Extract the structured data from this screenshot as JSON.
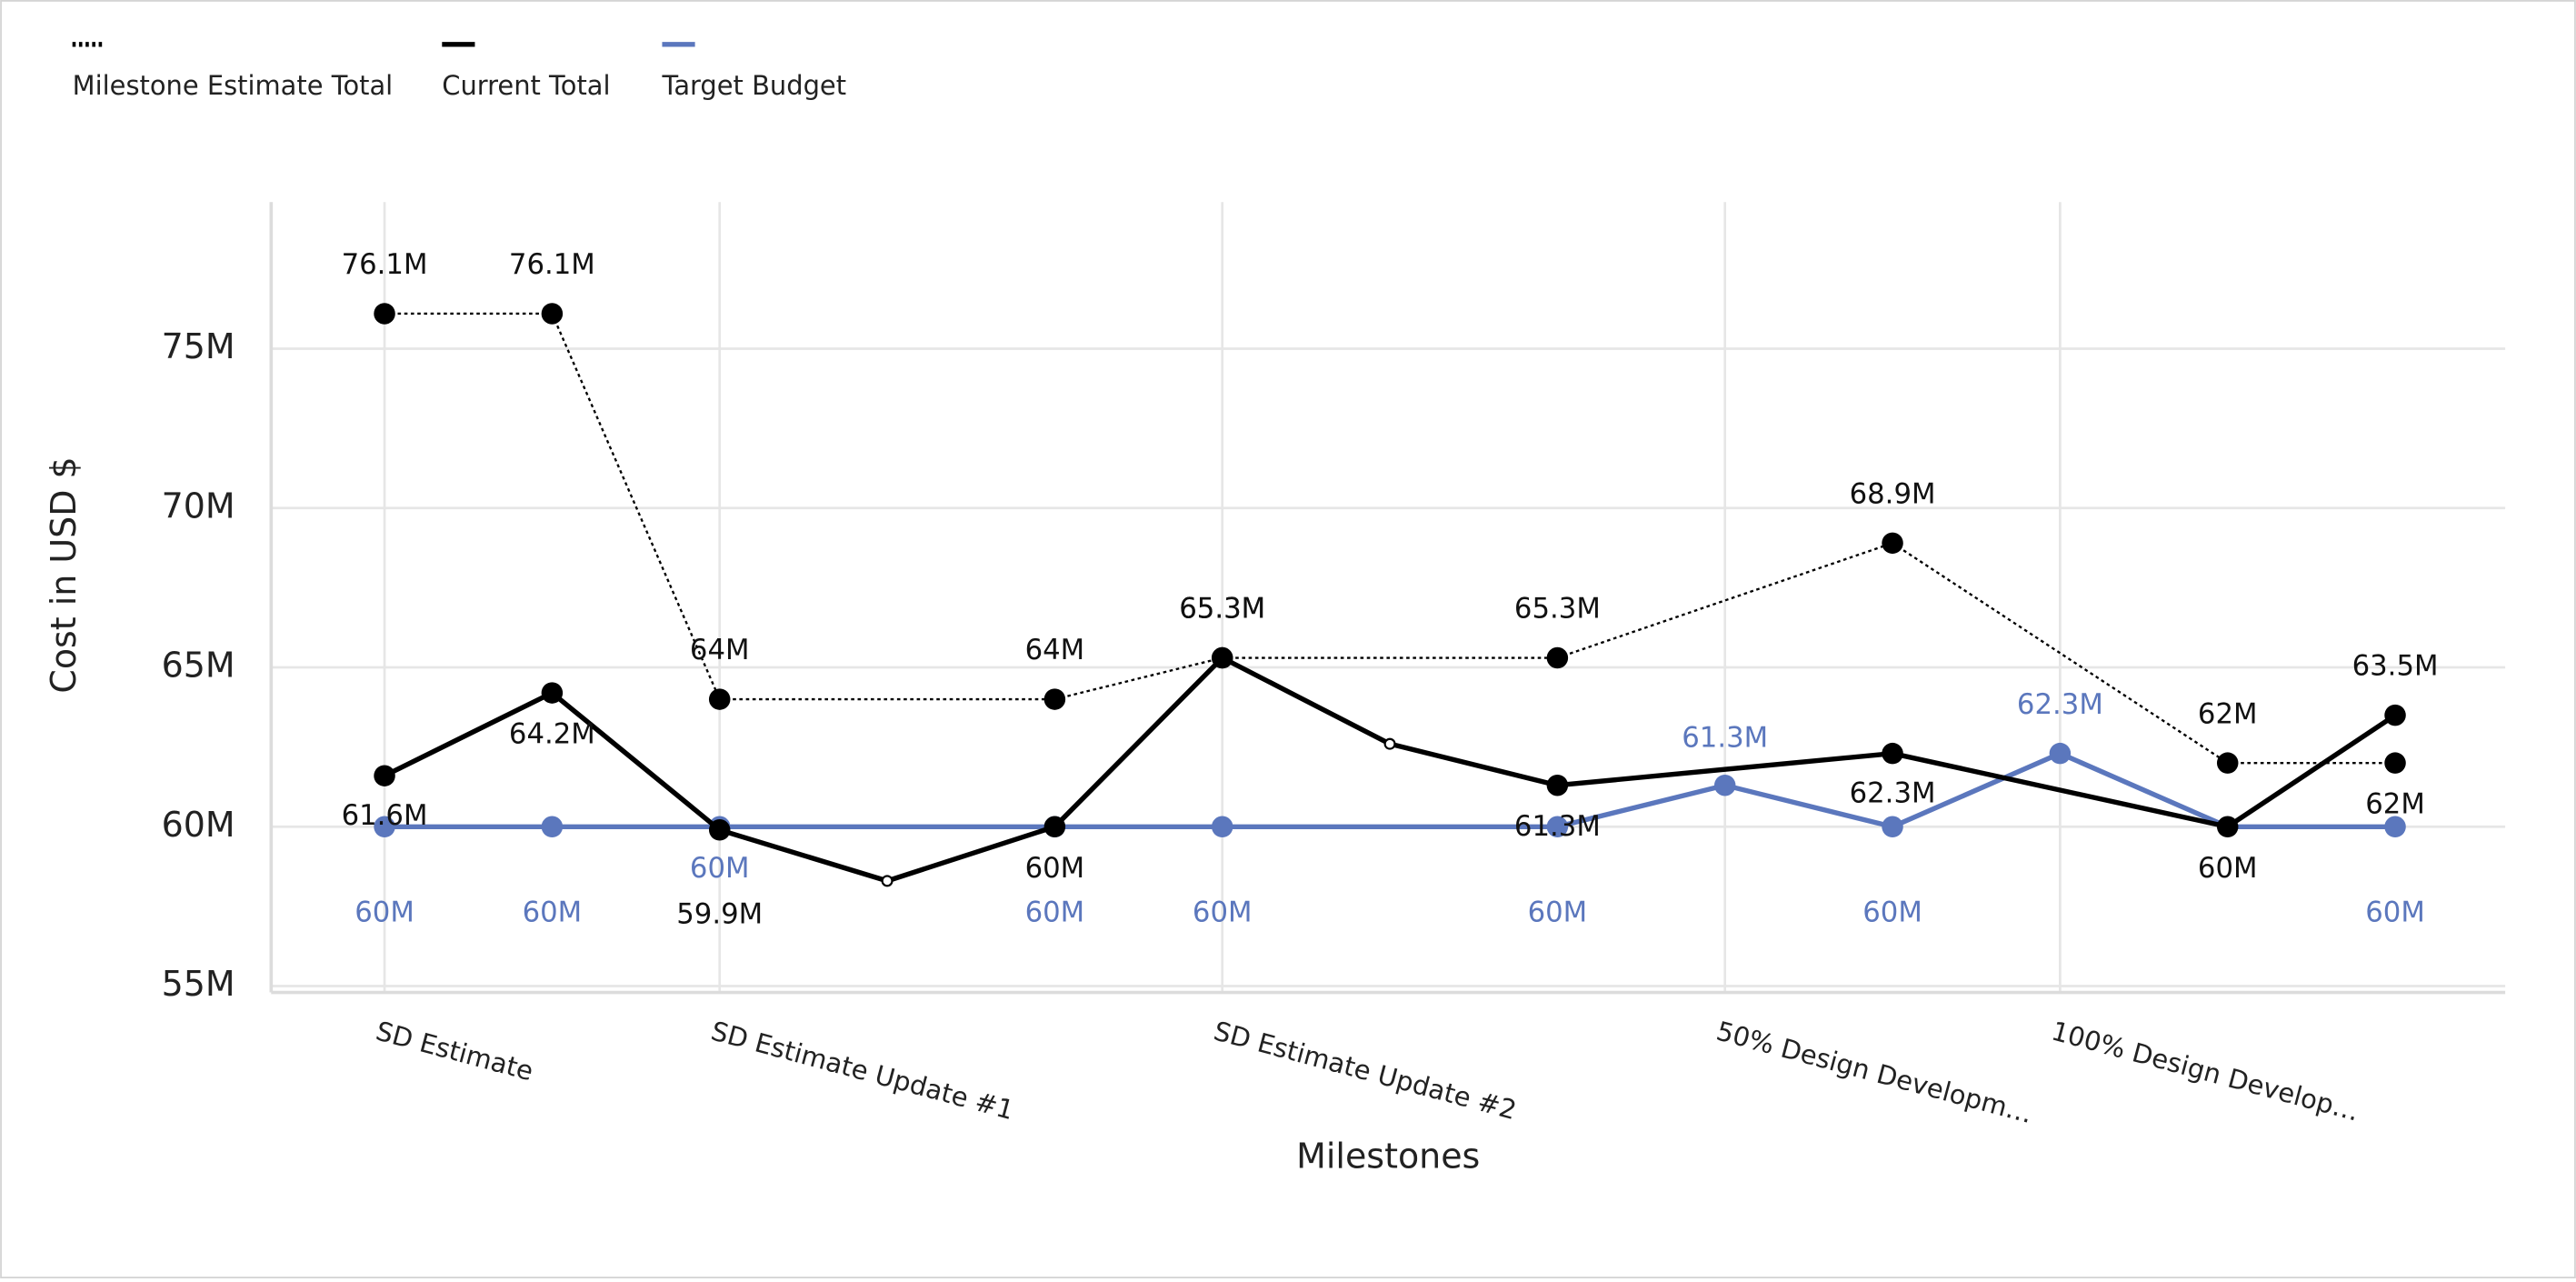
{
  "chart_data": {
    "type": "line",
    "x_label": "Milestones",
    "y_label": "Cost in USD $",
    "categories": [
      "SD Estimate",
      null,
      "SD Estimate Update #1",
      null,
      null,
      "SD Estimate Update #2",
      null,
      null,
      "50% Design Developm…",
      null,
      "100% Design Develop…",
      null,
      null
    ],
    "ylim": [
      54.8,
      79.6
    ],
    "yticks": [
      {
        "value": 55,
        "label": "55M"
      },
      {
        "value": 60,
        "label": "60M"
      },
      {
        "value": 65,
        "label": "65M"
      },
      {
        "value": 70,
        "label": "70M"
      },
      {
        "value": 75,
        "label": "75M"
      }
    ],
    "grid": true,
    "connect_gaps": true,
    "legend": "top-left",
    "series": [
      {
        "name": "Milestone Estimate Total",
        "color": "#000000",
        "dash": "dotted",
        "values": [
          76.1,
          76.1,
          64,
          null,
          64,
          65.3,
          null,
          65.3,
          null,
          68.9,
          null,
          62,
          62
        ],
        "value_labels": [
          "76.1M",
          "76.1M",
          "64M",
          null,
          "64M",
          "65.3M",
          null,
          "65.3M",
          null,
          "68.9M",
          null,
          "62M",
          "62M"
        ]
      },
      {
        "name": "Current Total",
        "color": "#000000",
        "dash": "solid",
        "values": [
          61.6,
          64.2,
          59.9,
          58.3,
          60,
          65.3,
          62.6,
          61.3,
          null,
          62.3,
          null,
          60,
          63.5
        ],
        "value_labels": [
          "61.6M",
          "64.2M",
          "59.9M",
          null,
          "60M",
          "65.3M",
          null,
          "61.3M",
          null,
          "62.3M",
          null,
          "60M",
          "63.5M"
        ]
      },
      {
        "name": "Target Budget",
        "color": "#5b77bd",
        "dash": "solid",
        "values": [
          60,
          60,
          60,
          null,
          60,
          60,
          null,
          60,
          61.3,
          60,
          62.3,
          60,
          60
        ],
        "value_labels": [
          "60M",
          "60M",
          "60M",
          null,
          "60M",
          "60M",
          null,
          "60M",
          "61.3M",
          "60M",
          "62.3M",
          null,
          "60M"
        ]
      }
    ]
  }
}
